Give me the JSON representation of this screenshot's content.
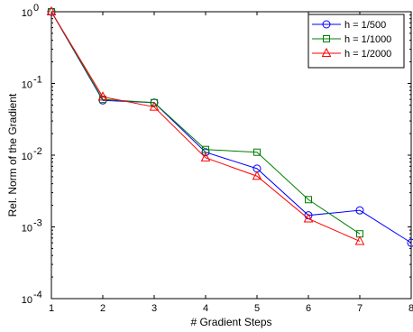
{
  "chart_data": {
    "type": "line",
    "title": "",
    "xlabel": "# Gradient Steps",
    "ylabel": "Rel. Norm of the Gradient",
    "xlim": [
      1,
      8
    ],
    "ylim": [
      0.0001,
      1
    ],
    "yscale": "log",
    "grid": false,
    "legend_position": "top-right",
    "x_ticks": [
      {
        "value": 1,
        "label": "1"
      },
      {
        "value": 2,
        "label": "2"
      },
      {
        "value": 3,
        "label": "3"
      },
      {
        "value": 4,
        "label": "4"
      },
      {
        "value": 5,
        "label": "5"
      },
      {
        "value": 6,
        "label": "6"
      },
      {
        "value": 7,
        "label": "7"
      },
      {
        "value": 8,
        "label": "8"
      }
    ],
    "y_ticks": [
      {
        "value": 1,
        "base": "10",
        "exp": "0"
      },
      {
        "value": 0.1,
        "base": "10",
        "exp": "-1"
      },
      {
        "value": 0.01,
        "base": "10",
        "exp": "-2"
      },
      {
        "value": 0.001,
        "base": "10",
        "exp": "-3"
      },
      {
        "value": 0.0001,
        "base": "10",
        "exp": "-4"
      }
    ],
    "series": [
      {
        "name": "h = 1/500",
        "color": "#0000ff",
        "marker": "circle",
        "x": [
          1,
          2,
          3,
          4,
          5,
          6,
          7,
          8
        ],
        "y": [
          1.0,
          0.058,
          0.054,
          0.011,
          0.0065,
          0.00145,
          0.0017,
          0.0006
        ]
      },
      {
        "name": "h = 1/1000",
        "color": "#007f00",
        "marker": "square",
        "x": [
          1,
          2,
          3,
          4,
          5,
          6,
          7
        ],
        "y": [
          1.0,
          0.06,
          0.054,
          0.012,
          0.011,
          0.0024,
          0.0008
        ]
      },
      {
        "name": "h = 1/2000",
        "color": "#ff0000",
        "marker": "triangle",
        "x": [
          1,
          2,
          3,
          4,
          5,
          6,
          7
        ],
        "y": [
          1.0,
          0.065,
          0.047,
          0.0092,
          0.0051,
          0.0013,
          0.00063
        ]
      }
    ]
  }
}
